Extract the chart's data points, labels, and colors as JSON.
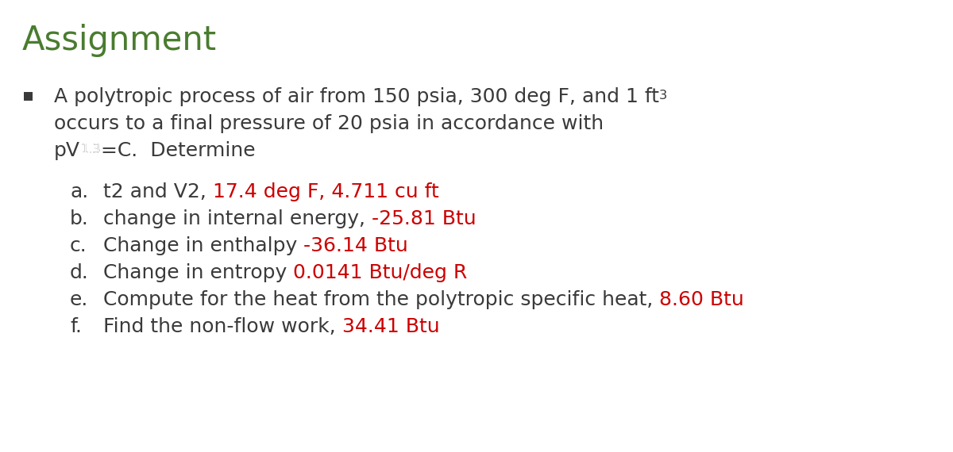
{
  "title": "Assignment",
  "title_color": "#4a7c2f",
  "title_fontsize": 30,
  "bg_color": "#ffffff",
  "text_color": "#3a3a3a",
  "answer_color": "#cc0000",
  "bullet_char": "▪",
  "intro_line1": "A polytropic process of air from 150 psia, 300 deg F, and 1 ft",
  "intro_line1_super": "3",
  "intro_line2": "occurs to a final pressure of 20 psia in accordance with",
  "intro_line3_before": "pV",
  "intro_line3_super": "1.3",
  "intro_line3_after": "=C.  Determine",
  "items": [
    {
      "label": "a.",
      "text_before": "t2 and V2, ",
      "answer": "17.4 deg F, 4.711 cu ft"
    },
    {
      "label": "b.",
      "text_before": "change in internal energy, ",
      "answer": "-25.81 Btu"
    },
    {
      "label": "c.",
      "text_before": "Change in enthalpy ",
      "answer": "-36.14 Btu"
    },
    {
      "label": "d.",
      "text_before": "Change in entropy ",
      "answer": "0.0141 Btu/deg R"
    },
    {
      "label": "e.",
      "text_before": "Compute for the heat from the polytropic specific heat, ",
      "answer": "8.60 Btu"
    },
    {
      "label": "f.",
      "text_before": "Find the non-flow work, ",
      "answer": "34.41 Btu"
    }
  ],
  "main_fontsize": 18,
  "item_fontsize": 18
}
